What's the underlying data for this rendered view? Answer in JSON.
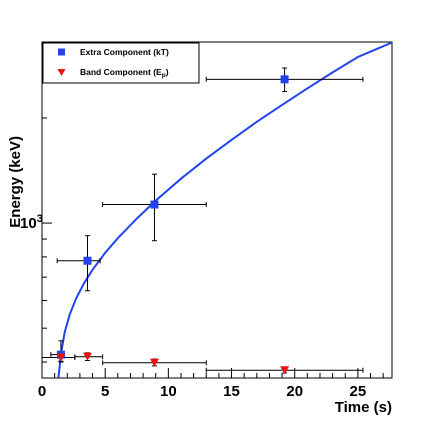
{
  "chart_data": {
    "type": "scatter",
    "xlabel": "Time (s)",
    "ylabel": "Energy (keV)",
    "x_ticks": [
      0,
      5,
      10,
      15,
      20,
      25
    ],
    "xlim": [
      0,
      27.7
    ],
    "y_scale": "log",
    "y_tick_labels": [
      {
        "value": 1000,
        "base": "10",
        "exp": "3"
      }
    ],
    "ylim": [
      360,
      3300
    ],
    "grid": false,
    "legend_position": "top-left",
    "series": [
      {
        "name": "Extra Component (kT)",
        "marker": "square",
        "color": "#2244ee",
        "points": [
          {
            "x": 1.5,
            "xerr": [
              0.7,
              1.5
            ],
            "y": 420,
            "yerr": [
              400,
              460
            ]
          },
          {
            "x": 3.6,
            "xerr": [
              1.2,
              4.6
            ],
            "y": 780,
            "yerr": [
              640,
              920
            ]
          },
          {
            "x": 8.9,
            "xerr": [
              4.8,
              13.0
            ],
            "y": 1130,
            "yerr": [
              890,
              1380
            ]
          },
          {
            "x": 19.2,
            "xerr": [
              13.0,
              25.4
            ],
            "y": 2580,
            "yerr": [
              2380,
              2780
            ]
          }
        ]
      },
      {
        "name": "Band Component (Ep)",
        "legend_label": {
          "base": "Band Component (E",
          "sub": "p",
          "tail": ")"
        },
        "marker": "triangle-down",
        "color": "#ee1111",
        "points": [
          {
            "x": 1.5,
            "xerr": [
              0.0,
              2.6
            ],
            "y": 412,
            "yerr": [
              402,
              424
            ]
          },
          {
            "x": 3.6,
            "xerr": [
              2.6,
              4.8
            ],
            "y": 414,
            "yerr": [
              404,
              425
            ]
          },
          {
            "x": 8.9,
            "xerr": [
              4.8,
              13.0
            ],
            "y": 398,
            "yerr": [
              390,
              408
            ]
          },
          {
            "x": 19.2,
            "xerr": [
              13.0,
              25.4
            ],
            "y": 379,
            "yerr": [
              372,
              387
            ]
          }
        ]
      }
    ],
    "fit_curve": {
      "color": "#2244ee",
      "x": [
        1.3,
        1.5,
        1.8,
        2.2,
        2.7,
        3.3,
        4.0,
        5.0,
        6.0,
        7.5,
        9.0,
        11.0,
        13.0,
        15.0,
        17.0,
        19.0,
        21.0,
        23.0,
        25.0,
        27.7
      ],
      "y": [
        360,
        422,
        487,
        548,
        608,
        670,
        735,
        822,
        905,
        1030,
        1160,
        1340,
        1530,
        1730,
        1950,
        2180,
        2430,
        2700,
        2990,
        3290
      ]
    }
  }
}
